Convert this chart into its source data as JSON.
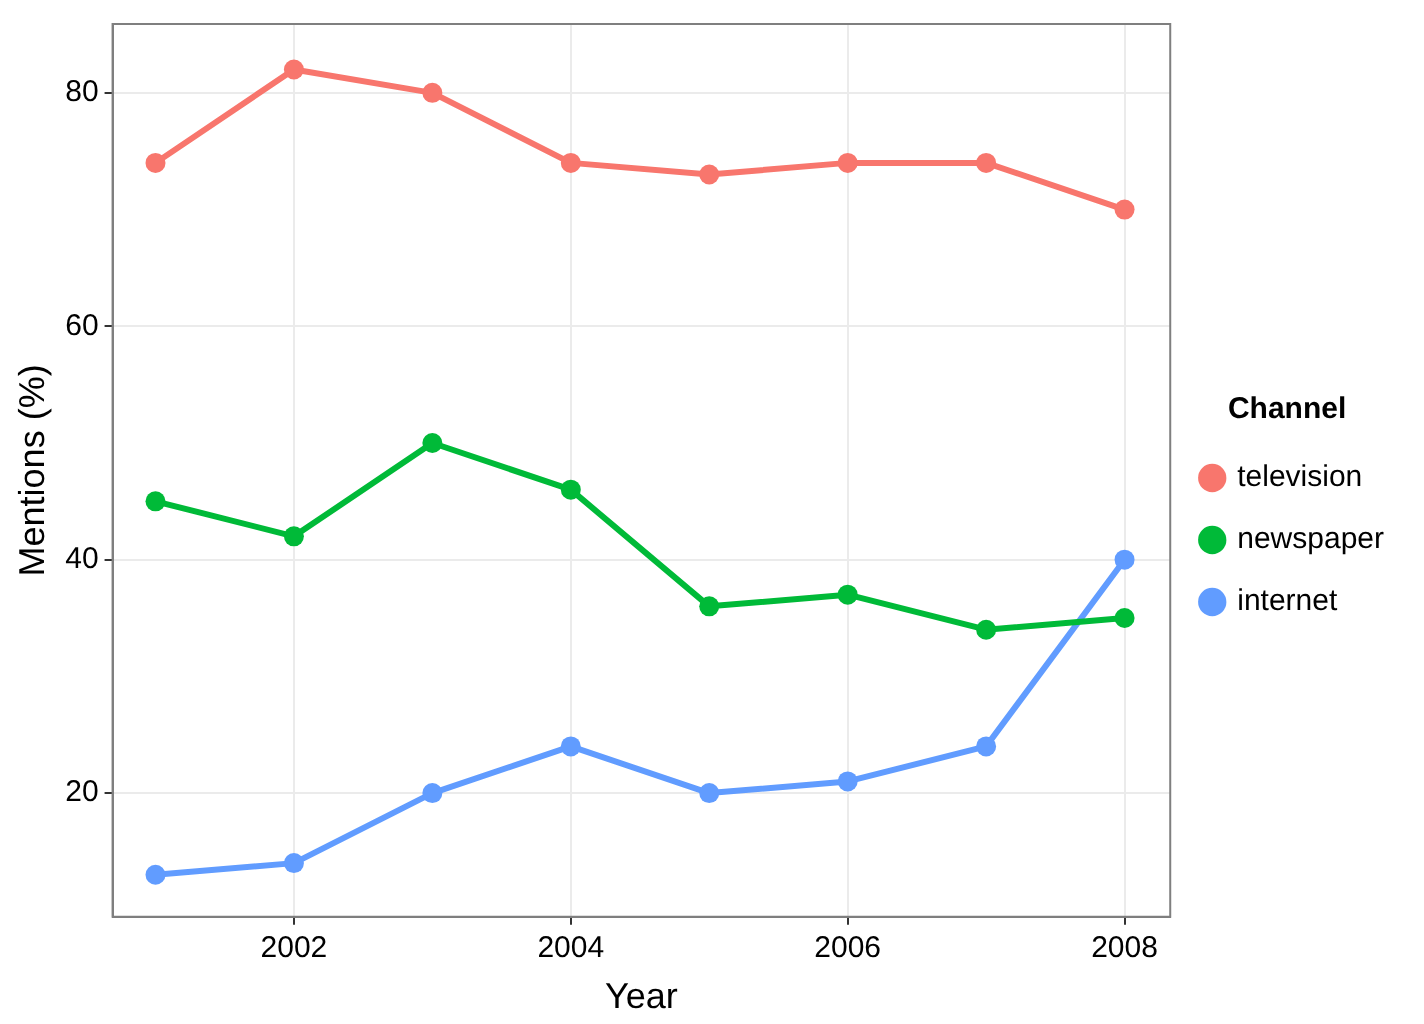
{
  "chart_data": {
    "type": "line",
    "xlabel": "Year",
    "ylabel": "Mentions (%)",
    "legend_title": "Channel",
    "x": [
      2001,
      2002,
      2003,
      2004,
      2005,
      2006,
      2007,
      2008
    ],
    "series": [
      {
        "name": "television",
        "color": "#f8766d",
        "values": [
          74,
          82,
          80,
          74,
          73,
          74,
          74,
          70
        ]
      },
      {
        "name": "newspaper",
        "color": "#00ba38",
        "values": [
          45,
          42,
          50,
          46,
          36,
          37,
          34,
          35
        ]
      },
      {
        "name": "internet",
        "color": "#619cff",
        "values": [
          13,
          14,
          20,
          24,
          20,
          21,
          24,
          40
        ]
      }
    ],
    "xlim": [
      2000.69,
      2008.33
    ],
    "ylim": [
      9.4,
      85.9
    ],
    "xticks": [
      2002,
      2004,
      2006,
      2008
    ],
    "yticks": [
      20,
      40,
      60,
      80
    ],
    "grid": true,
    "legend": "right",
    "marker": "circle",
    "line_style": "solid"
  }
}
